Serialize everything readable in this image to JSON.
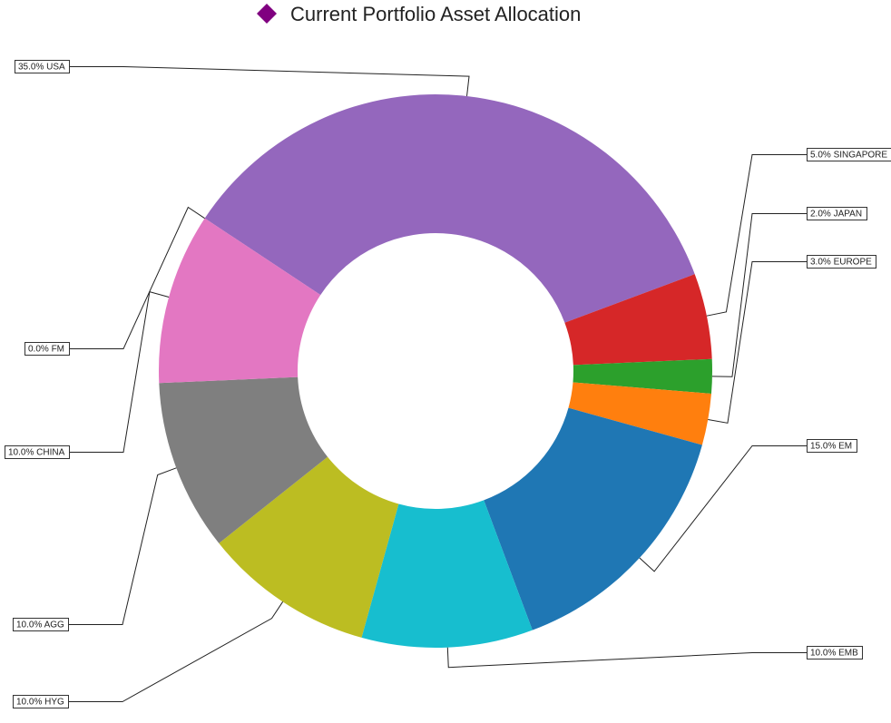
{
  "title": "Current Portfolio Asset Allocation",
  "title_icon": "purple-diamond-icon",
  "title_icon_color": "#800080",
  "chart_data": {
    "type": "pie",
    "donut": true,
    "title": "Current Portfolio Asset Allocation",
    "slices": [
      {
        "name": "USA",
        "value": 35.0,
        "label": "35.0% USA",
        "color": "#9467bd"
      },
      {
        "name": "SINGAPORE",
        "value": 5.0,
        "label": "5.0% SINGAPORE",
        "color": "#d62728"
      },
      {
        "name": "JAPAN",
        "value": 2.0,
        "label": "2.0% JAPAN",
        "color": "#2ca02c"
      },
      {
        "name": "EUROPE",
        "value": 3.0,
        "label": "3.0% EUROPE",
        "color": "#ff7f0e"
      },
      {
        "name": "EM",
        "value": 15.0,
        "label": "15.0% EM",
        "color": "#1f77b4"
      },
      {
        "name": "EMB",
        "value": 10.0,
        "label": "10.0% EMB",
        "color": "#17becf"
      },
      {
        "name": "HYG",
        "value": 10.0,
        "label": "10.0% HYG",
        "color": "#bcbd22"
      },
      {
        "name": "AGG",
        "value": 10.0,
        "label": "10.0% AGG",
        "color": "#7f7f7f"
      },
      {
        "name": "CHINA",
        "value": 10.0,
        "label": "10.0% CHINA",
        "color": "#e377c2"
      },
      {
        "name": "FM",
        "value": 0.0,
        "label": "0.0% FM",
        "color": "#8c564b"
      }
    ],
    "legend": "none"
  }
}
